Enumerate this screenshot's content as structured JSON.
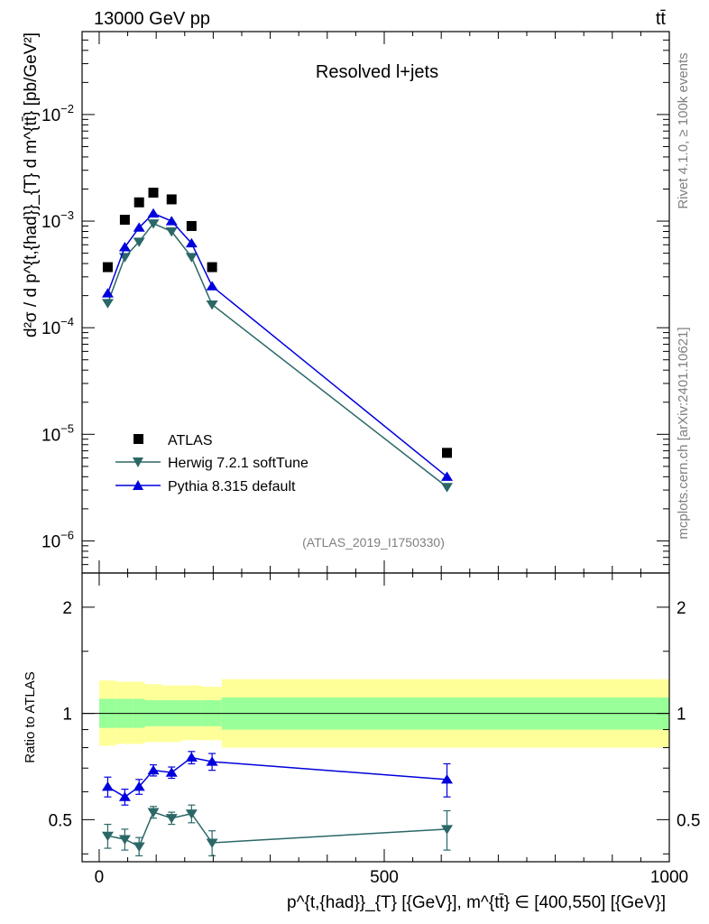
{
  "header": {
    "energy_label": "13000 GeV pp",
    "process_label": "tt̄",
    "panel_title": "Resolved l+jets",
    "analysis_id": "(ATLAS_2019_I1750330)",
    "side_text_rivet": "Rivet 4.1.0, ≥ 100k events",
    "side_text_mcplots": "mcplots.cern.ch [arXiv:2401.10621]"
  },
  "axes": {
    "main_ylabel": "d²σ / d p^{t,{had}}_{T} d m^{tt̄} [pb/GeV²]",
    "ratio_ylabel": "Ratio to ATLAS",
    "xlabel": "p^{t,{had}}_{T} [{GeV}], m^{tt̄} ∈ [400,550] [{GeV}]",
    "x_ticks": [
      "0",
      "500",
      "1000"
    ],
    "main_y_ticks": [
      {
        "mant": "10",
        "exp": "−2"
      },
      {
        "mant": "10",
        "exp": "−3"
      },
      {
        "mant": "10",
        "exp": "−4"
      },
      {
        "mant": "10",
        "exp": "−5"
      },
      {
        "mant": "10",
        "exp": "−6"
      }
    ],
    "ratio_y_ticks": [
      "2",
      "1",
      "0.5"
    ]
  },
  "colors": {
    "atlas": "#000000",
    "herwig": "#2b6767",
    "pythia": "#0000dd",
    "band_inner": "#99ff99",
    "band_outer": "#ffff99"
  },
  "chart_data": {
    "type": "scatter",
    "x_scale": "linear",
    "xlim": [
      -30,
      1000
    ],
    "main": {
      "y_scale": "log",
      "ylim": [
        5e-07,
        0.06
      ]
    },
    "ratio": {
      "y_scale": "log",
      "ylim": [
        0.38,
        2.5
      ]
    },
    "x": [
      15,
      45,
      70,
      95,
      127,
      162,
      198,
      610
    ],
    "series": [
      {
        "name": "ATLAS",
        "marker": "square",
        "values": [
          0.00037,
          0.00103,
          0.0015,
          0.00185,
          0.0016,
          0.0009,
          0.00037,
          6.7e-06
        ]
      },
      {
        "name": "Herwig 7.2.1 softTune",
        "marker": "triangle-down",
        "values": [
          0.00017,
          0.00046,
          0.00064,
          0.00095,
          0.0008,
          0.00046,
          0.000165,
          3.2e-06
        ],
        "ratio": [
          0.45,
          0.44,
          0.42,
          0.525,
          0.505,
          0.52,
          0.43,
          0.47
        ],
        "ratio_err": [
          0.035,
          0.03,
          0.025,
          0.02,
          0.02,
          0.03,
          0.035,
          0.06
        ]
      },
      {
        "name": "Pythia 8.315 default",
        "marker": "triangle-up",
        "values": [
          0.00021,
          0.00057,
          0.00087,
          0.00118,
          0.001,
          0.00062,
          0.000245,
          4e-06
        ],
        "ratio": [
          0.62,
          0.58,
          0.62,
          0.69,
          0.68,
          0.75,
          0.73,
          0.65
        ],
        "ratio_err": [
          0.04,
          0.03,
          0.03,
          0.025,
          0.025,
          0.03,
          0.04,
          0.07
        ]
      }
    ],
    "ratio_bands": [
      {
        "xmin": 0,
        "xmax": 30,
        "inner": [
          0.91,
          1.1
        ],
        "outer": [
          0.81,
          1.24
        ]
      },
      {
        "xmin": 30,
        "xmax": 60,
        "inner": [
          0.91,
          1.1
        ],
        "outer": [
          0.82,
          1.23
        ]
      },
      {
        "xmin": 60,
        "xmax": 80,
        "inner": [
          0.91,
          1.1
        ],
        "outer": [
          0.82,
          1.23
        ]
      },
      {
        "xmin": 80,
        "xmax": 110,
        "inner": [
          0.92,
          1.09
        ],
        "outer": [
          0.83,
          1.21
        ]
      },
      {
        "xmin": 110,
        "xmax": 145,
        "inner": [
          0.92,
          1.09
        ],
        "outer": [
          0.83,
          1.2
        ]
      },
      {
        "xmin": 145,
        "xmax": 180,
        "inner": [
          0.92,
          1.09
        ],
        "outer": [
          0.84,
          1.2
        ]
      },
      {
        "xmin": 180,
        "xmax": 215,
        "inner": [
          0.92,
          1.09
        ],
        "outer": [
          0.84,
          1.19
        ]
      },
      {
        "xmin": 215,
        "xmax": 1000,
        "inner": [
          0.9,
          1.11
        ],
        "outer": [
          0.8,
          1.25
        ]
      }
    ]
  }
}
